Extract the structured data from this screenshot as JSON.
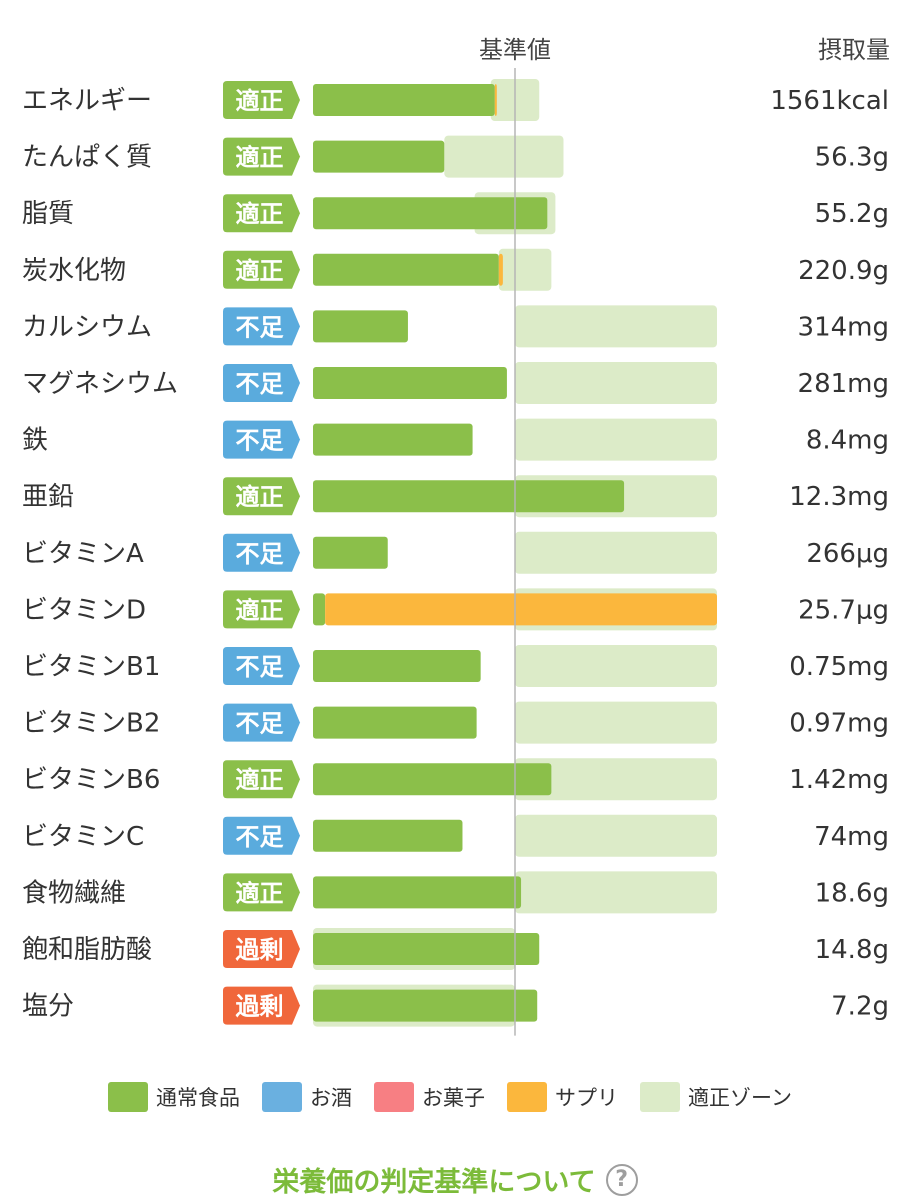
{
  "header": {
    "reference_label": "基準値",
    "intake_label": "摂取量"
  },
  "chart_data": {
    "type": "bar",
    "orientation": "horizontal",
    "stacked": true,
    "xlabel": "",
    "ylabel": "",
    "reference_line": 100,
    "xlim": [
      0,
      200
    ],
    "grid": false,
    "legend": "bottom",
    "categories": [
      "エネルギー",
      "たんぱく質",
      "脂質",
      "炭水化物",
      "カルシウム",
      "マグネシウム",
      "鉄",
      "亜鉛",
      "ビタミンA",
      "ビタミンD",
      "ビタミンB1",
      "ビタミンB2",
      "ビタミンB6",
      "ビタミンC",
      "食物繊維",
      "飽和脂肪酸",
      "塩分"
    ],
    "badges": [
      "適正",
      "適正",
      "適正",
      "適正",
      "不足",
      "不足",
      "不足",
      "適正",
      "不足",
      "適正",
      "不足",
      "不足",
      "適正",
      "不足",
      "適正",
      "過剰",
      "過剰"
    ],
    "badge_types": [
      "ok",
      "ok",
      "ok",
      "ok",
      "low",
      "low",
      "low",
      "ok",
      "low",
      "ok",
      "low",
      "low",
      "ok",
      "low",
      "ok",
      "over",
      "over"
    ],
    "intake_values": [
      "1561kcal",
      "56.3g",
      "55.2g",
      "220.9g",
      "314mg",
      "281mg",
      "8.4mg",
      "12.3mg",
      "266μg",
      "25.7μg",
      "0.75mg",
      "0.97mg",
      "1.42mg",
      "74mg",
      "18.6g",
      "14.8g",
      "7.2g"
    ],
    "series": [
      {
        "name": "通常食品",
        "values": [
          90,
          65,
          116,
          92,
          47,
          96,
          79,
          154,
          37,
          6,
          83,
          81,
          118,
          74,
          103,
          112,
          111
        ]
      },
      {
        "name": "お酒",
        "values": [
          0,
          0,
          0,
          0,
          0,
          0,
          0,
          0,
          0,
          0,
          0,
          0,
          0,
          0,
          0,
          0,
          0
        ]
      },
      {
        "name": "お菓子",
        "values": [
          0,
          0,
          0,
          0,
          0,
          0,
          0,
          0,
          0,
          0,
          0,
          0,
          0,
          0,
          0,
          0,
          0
        ]
      },
      {
        "name": "サプリ",
        "values": [
          1,
          0,
          0,
          2,
          0,
          0,
          0,
          0,
          0,
          194,
          0,
          0,
          0,
          0,
          0,
          0,
          0
        ]
      }
    ],
    "proper_zone": [
      [
        88,
        112
      ],
      [
        65,
        124
      ],
      [
        80,
        120
      ],
      [
        92,
        118
      ],
      [
        100,
        200
      ],
      [
        100,
        200
      ],
      [
        100,
        200
      ],
      [
        100,
        200
      ],
      [
        100,
        200
      ],
      [
        100,
        200
      ],
      [
        100,
        200
      ],
      [
        100,
        200
      ],
      [
        100,
        200
      ],
      [
        100,
        200
      ],
      [
        100,
        200
      ],
      [
        0,
        100
      ],
      [
        0,
        100
      ]
    ],
    "proper_zone_name": "適正ゾーン"
  },
  "badge_colors": {
    "ok": "#8bbf4a",
    "low": "#5aabdd",
    "over": "#f0673b"
  },
  "colors": {
    "normal_food": "#8bbf4a",
    "alcohol": "#6ab0e0",
    "sweets": "#f77f83",
    "supplement": "#fbb73d",
    "proper_zone": "#dcebc8",
    "reference_line": "#b5b5b5"
  },
  "legend": [
    {
      "label": "通常食品",
      "color": "#8bbf4a"
    },
    {
      "label": "お酒",
      "color": "#6ab0e0"
    },
    {
      "label": "お菓子",
      "color": "#f77f83"
    },
    {
      "label": "サプリ",
      "color": "#fbb73d"
    },
    {
      "label": "適正ゾーン",
      "color": "#dcebc8"
    }
  ],
  "footer": {
    "link_text": "栄養価の判定基準について",
    "help_icon": "question-circle-icon"
  }
}
